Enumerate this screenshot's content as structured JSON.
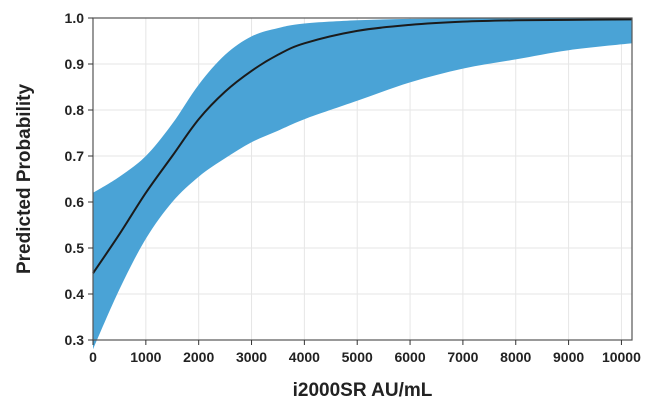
{
  "chart_data": {
    "type": "line",
    "xlabel": "i2000SR AU/mL",
    "ylabel": "Predicted Probability",
    "xlim": [
      0,
      10200
    ],
    "ylim": [
      0.3,
      1.0
    ],
    "x_ticks": [
      0,
      1000,
      2000,
      3000,
      4000,
      5000,
      6000,
      7000,
      8000,
      9000,
      10000
    ],
    "y_ticks": [
      0.3,
      0.4,
      0.5,
      0.6,
      0.7,
      0.8,
      0.9,
      1.0
    ],
    "x_tick_labels": [
      "0",
      "1000",
      "2000",
      "3000",
      "4000",
      "5000",
      "6000",
      "7000",
      "8000",
      "9000",
      "10000"
    ],
    "y_tick_labels": [
      "0.3",
      "0.4",
      "0.5",
      "0.6",
      "0.7",
      "0.8",
      "0.9",
      "1.0"
    ],
    "grid": true,
    "colors": {
      "band": "#4aa3d6",
      "line": "#1b1b1b",
      "grid": "#e6e6e6",
      "frame": "#555555"
    },
    "series": [
      {
        "x": [
          0,
          500,
          1000,
          1500,
          2000,
          2500,
          3000,
          3500,
          4000,
          5000,
          6000,
          7000,
          8000,
          9000,
          10200
        ],
        "y": [
          0.445,
          0.53,
          0.62,
          0.7,
          0.78,
          0.84,
          0.885,
          0.92,
          0.945,
          0.972,
          0.985,
          0.992,
          0.995,
          0.996,
          0.997
        ],
        "lower": [
          0.28,
          0.41,
          0.52,
          0.6,
          0.655,
          0.695,
          0.73,
          0.755,
          0.78,
          0.82,
          0.86,
          0.89,
          0.91,
          0.93,
          0.945
        ],
        "upper": [
          0.62,
          0.655,
          0.7,
          0.77,
          0.855,
          0.92,
          0.96,
          0.978,
          0.988,
          0.995,
          0.998,
          0.999,
          0.999,
          0.999,
          0.999
        ]
      }
    ]
  }
}
